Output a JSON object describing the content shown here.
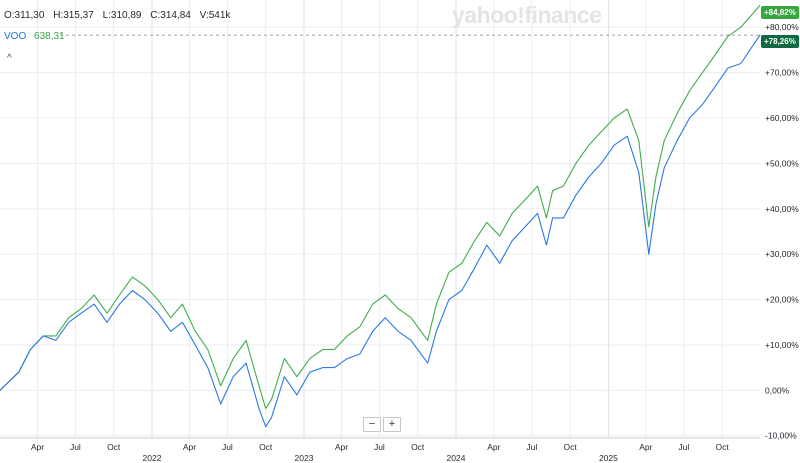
{
  "header": {
    "ohlc": {
      "open": "O:311,30",
      "high": "H:315,37",
      "low": "L:310,89",
      "close": "C:314,84",
      "volume": "V:541k"
    },
    "legend_symbol": "VOO",
    "legend_value": "638,31",
    "collapse_icon": "chevron-up-icon",
    "logo": "yahoo!finance"
  },
  "badges": {
    "spx": "+84,82%",
    "voo": "+78,26%"
  },
  "controls": {
    "zoom_out": "−",
    "zoom_in": "+"
  },
  "colors": {
    "voo": "#2a78e4",
    "compare": "#3fae49",
    "grid": "#e9edf0",
    "spx_badge": "#37a540",
    "voo_badge": "#0f6b3f"
  },
  "chart_data": {
    "type": "line",
    "x_ticks": [
      {
        "label": "Apr",
        "x": "2021-04-01"
      },
      {
        "label": "Jul",
        "x": "2021-07-01"
      },
      {
        "label": "Oct",
        "x": "2021-10-01"
      },
      {
        "label": "Apr",
        "x": "2022-04-01"
      },
      {
        "label": "Jul",
        "x": "2022-07-01"
      },
      {
        "label": "Oct",
        "x": "2022-10-01"
      },
      {
        "label": "Apr",
        "x": "2023-04-01"
      },
      {
        "label": "Jul",
        "x": "2023-07-01"
      },
      {
        "label": "Oct",
        "x": "2023-10-01"
      },
      {
        "label": "Apr",
        "x": "2024-04-01"
      },
      {
        "label": "Jul",
        "x": "2024-07-01"
      },
      {
        "label": "Oct",
        "x": "2024-10-01"
      },
      {
        "label": "Apr",
        "x": "2025-04-01"
      },
      {
        "label": "Jul",
        "x": "2025-07-01"
      },
      {
        "label": "Oct",
        "x": "2025-10-01"
      }
    ],
    "year_labels": [
      {
        "label": "2022",
        "x": "2022-01-01"
      },
      {
        "label": "2023",
        "x": "2023-01-01"
      },
      {
        "label": "2024",
        "x": "2024-01-01"
      },
      {
        "label": "2025",
        "x": "2025-01-01"
      }
    ],
    "y_ticks": [
      "-10,00%",
      "0,00%",
      "+10,00%",
      "+20,00%",
      "+30,00%",
      "+40,00%",
      "+50,00%",
      "+60,00%",
      "+70,00%",
      "+80,00%"
    ],
    "y_tick_values": [
      -10,
      0,
      10,
      20,
      30,
      40,
      50,
      60,
      70,
      80
    ],
    "ylim": [
      -10.5,
      86
    ],
    "x_range": [
      "2021-01-01",
      "2025-12-31"
    ],
    "series": [
      {
        "name": "VOO",
        "color": "#2a78e4",
        "points": [
          [
            "2021-01-01",
            0
          ],
          [
            "2021-02-15",
            4
          ],
          [
            "2021-03-15",
            9
          ],
          [
            "2021-04-15",
            12
          ],
          [
            "2021-05-15",
            11
          ],
          [
            "2021-06-15",
            15
          ],
          [
            "2021-07-15",
            17
          ],
          [
            "2021-08-15",
            19
          ],
          [
            "2021-09-15",
            15
          ],
          [
            "2021-10-15",
            19
          ],
          [
            "2021-11-15",
            22
          ],
          [
            "2021-12-15",
            20
          ],
          [
            "2022-01-15",
            17
          ],
          [
            "2022-02-15",
            13
          ],
          [
            "2022-03-15",
            15
          ],
          [
            "2022-04-15",
            10
          ],
          [
            "2022-05-15",
            5
          ],
          [
            "2022-06-15",
            -3
          ],
          [
            "2022-07-15",
            3
          ],
          [
            "2022-08-15",
            6
          ],
          [
            "2022-09-15",
            -4
          ],
          [
            "2022-10-01",
            -8
          ],
          [
            "2022-10-15",
            -6
          ],
          [
            "2022-11-15",
            3
          ],
          [
            "2022-12-15",
            -1
          ],
          [
            "2023-01-15",
            4
          ],
          [
            "2023-02-15",
            5
          ],
          [
            "2023-03-15",
            5
          ],
          [
            "2023-04-15",
            7
          ],
          [
            "2023-05-15",
            8
          ],
          [
            "2023-06-15",
            13
          ],
          [
            "2023-07-15",
            16
          ],
          [
            "2023-08-15",
            13
          ],
          [
            "2023-09-15",
            11
          ],
          [
            "2023-10-25",
            6
          ],
          [
            "2023-11-15",
            13
          ],
          [
            "2023-12-15",
            20
          ],
          [
            "2024-01-15",
            22
          ],
          [
            "2024-02-15",
            27
          ],
          [
            "2024-03-15",
            32
          ],
          [
            "2024-04-15",
            28
          ],
          [
            "2024-05-15",
            33
          ],
          [
            "2024-06-15",
            36
          ],
          [
            "2024-07-15",
            39
          ],
          [
            "2024-08-05",
            32
          ],
          [
            "2024-08-20",
            38
          ],
          [
            "2024-09-15",
            38
          ],
          [
            "2024-10-15",
            43
          ],
          [
            "2024-11-15",
            47
          ],
          [
            "2024-12-15",
            50
          ],
          [
            "2025-01-15",
            54
          ],
          [
            "2025-02-15",
            56
          ],
          [
            "2025-03-15",
            48
          ],
          [
            "2025-04-08",
            30
          ],
          [
            "2025-04-25",
            41
          ],
          [
            "2025-05-15",
            49
          ],
          [
            "2025-06-15",
            55
          ],
          [
            "2025-07-15",
            60
          ],
          [
            "2025-08-15",
            63
          ],
          [
            "2025-09-15",
            67
          ],
          [
            "2025-10-15",
            71
          ],
          [
            "2025-11-15",
            72
          ],
          [
            "2025-12-31",
            78.26
          ]
        ]
      },
      {
        "name": "",
        "color": "#3fae49",
        "points": [
          [
            "2021-01-01",
            0
          ],
          [
            "2021-02-15",
            4
          ],
          [
            "2021-03-15",
            9
          ],
          [
            "2021-04-15",
            12
          ],
          [
            "2021-05-15",
            12
          ],
          [
            "2021-06-15",
            16
          ],
          [
            "2021-07-15",
            18
          ],
          [
            "2021-08-15",
            21
          ],
          [
            "2021-09-15",
            17
          ],
          [
            "2021-10-15",
            21
          ],
          [
            "2021-11-15",
            25
          ],
          [
            "2021-12-15",
            23
          ],
          [
            "2022-01-15",
            20
          ],
          [
            "2022-02-15",
            16
          ],
          [
            "2022-03-15",
            19
          ],
          [
            "2022-04-15",
            13
          ],
          [
            "2022-05-15",
            9
          ],
          [
            "2022-06-15",
            1
          ],
          [
            "2022-07-15",
            7
          ],
          [
            "2022-08-15",
            11
          ],
          [
            "2022-09-15",
            1
          ],
          [
            "2022-10-01",
            -4
          ],
          [
            "2022-10-15",
            -2
          ],
          [
            "2022-11-15",
            7
          ],
          [
            "2022-12-15",
            3
          ],
          [
            "2023-01-15",
            7
          ],
          [
            "2023-02-15",
            9
          ],
          [
            "2023-03-15",
            9
          ],
          [
            "2023-04-15",
            12
          ],
          [
            "2023-05-15",
            14
          ],
          [
            "2023-06-15",
            19
          ],
          [
            "2023-07-15",
            21
          ],
          [
            "2023-08-15",
            18
          ],
          [
            "2023-09-15",
            16
          ],
          [
            "2023-10-25",
            11
          ],
          [
            "2023-11-15",
            19
          ],
          [
            "2023-12-15",
            26
          ],
          [
            "2024-01-15",
            28
          ],
          [
            "2024-02-15",
            33
          ],
          [
            "2024-03-15",
            37
          ],
          [
            "2024-04-15",
            34
          ],
          [
            "2024-05-15",
            39
          ],
          [
            "2024-06-15",
            42
          ],
          [
            "2024-07-15",
            45
          ],
          [
            "2024-08-05",
            38
          ],
          [
            "2024-08-20",
            44
          ],
          [
            "2024-09-15",
            45
          ],
          [
            "2024-10-15",
            50
          ],
          [
            "2024-11-15",
            54
          ],
          [
            "2024-12-15",
            57
          ],
          [
            "2025-01-15",
            60
          ],
          [
            "2025-02-15",
            62
          ],
          [
            "2025-03-15",
            55
          ],
          [
            "2025-04-08",
            36
          ],
          [
            "2025-04-25",
            47
          ],
          [
            "2025-05-15",
            55
          ],
          [
            "2025-06-15",
            61
          ],
          [
            "2025-07-15",
            66
          ],
          [
            "2025-08-15",
            70
          ],
          [
            "2025-09-15",
            74
          ],
          [
            "2025-10-15",
            78
          ],
          [
            "2025-11-15",
            80
          ],
          [
            "2025-12-31",
            84.82
          ]
        ]
      }
    ]
  }
}
